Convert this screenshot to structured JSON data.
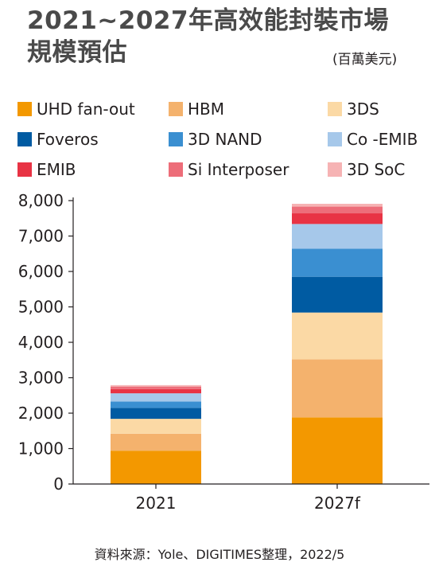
{
  "title_line1": "2021~2027年高效能封裝市場",
  "title_line2": "規模預估",
  "unit": "(百萬美元)",
  "source": "資料來源：Yole、DIGITIMES整理，2022/5",
  "chart_data": {
    "type": "bar",
    "stacked": true,
    "categories": [
      "2021",
      "2027f"
    ],
    "ylim": [
      0,
      8000
    ],
    "yticks": [
      0,
      1000,
      2000,
      3000,
      4000,
      5000,
      6000,
      7000,
      8000
    ],
    "ytick_labels": [
      "0",
      "1,000",
      "2,000",
      "3,000",
      "4,000",
      "5,000",
      "6,000",
      "7,000",
      "8,000"
    ],
    "legend_placement": "top",
    "grid": false,
    "series": [
      {
        "name": "UHD fan-out",
        "color": "#f39800",
        "values": [
          940,
          1880
        ]
      },
      {
        "name": "HBM",
        "color": "#f4b26d",
        "values": [
          480,
          1640
        ]
      },
      {
        "name": "3DS",
        "color": "#fbd9a5",
        "values": [
          420,
          1320
        ]
      },
      {
        "name": "Foveros",
        "color": "#005ba2",
        "values": [
          310,
          1010
        ]
      },
      {
        "name": "3D NAND",
        "color": "#3a8fd1",
        "values": [
          180,
          790
        ]
      },
      {
        "name": "Co -EMIB",
        "color": "#a6c8ea",
        "values": [
          230,
          700
        ]
      },
      {
        "name": "EMIB",
        "color": "#e83344",
        "values": [
          120,
          300
        ]
      },
      {
        "name": "Si Interposer",
        "color": "#ed6d79",
        "values": [
          70,
          190
        ]
      },
      {
        "name": "3D SoC",
        "color": "#f6b3b4",
        "values": [
          40,
          80
        ]
      }
    ]
  }
}
